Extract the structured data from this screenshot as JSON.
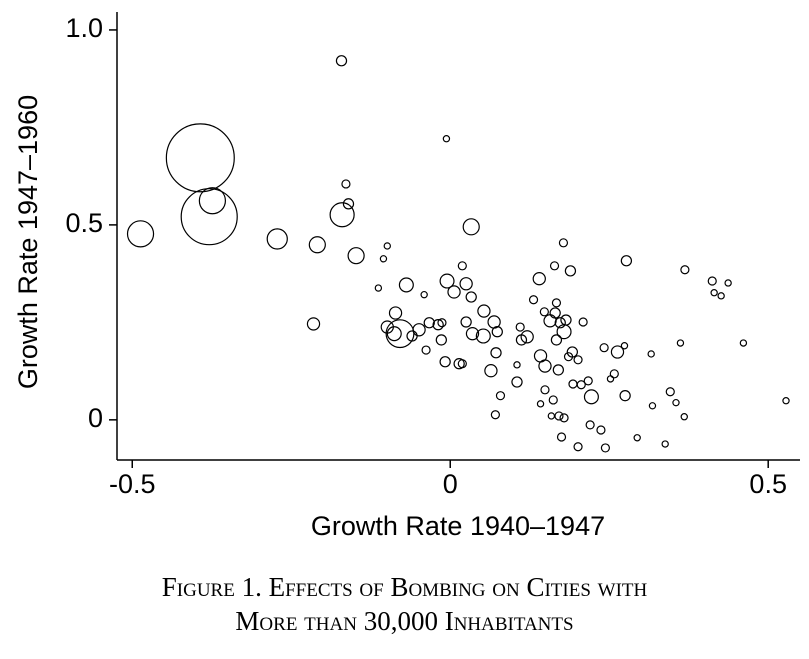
{
  "chart_data": {
    "type": "scatter",
    "x_label": "Growth Rate 1940–1947",
    "y_label": "Growth Rate 1947–1960",
    "caption": [
      "Figure 1. Effects of Bombing on Cities with",
      "More than 30,000 Inhabitants"
    ],
    "xlim": [
      -0.524,
      0.55
    ],
    "ylim": [
      -0.103,
      1.046
    ],
    "xticks": [
      -0.5,
      0,
      0.5
    ],
    "yticks": [
      0,
      0.5,
      {
        "value": 1,
        "label": "1.0"
      }
    ],
    "color": "#000000",
    "series": [
      {
        "x": [
          -0.393,
          -0.379,
          -0.374,
          -0.487,
          -0.272,
          -0.209,
          -0.17,
          -0.171,
          -0.164,
          -0.16,
          -0.148,
          -0.215,
          -0.099,
          -0.105,
          -0.113,
          -0.069,
          -0.041,
          -0.006,
          0.033,
          -0.005,
          0.019,
          0.006,
          0.025,
          0.033,
          -0.079,
          -0.086,
          -0.099,
          -0.088,
          -0.049,
          -0.06,
          -0.033,
          -0.019,
          -0.013,
          -0.014,
          -0.038,
          -0.008,
          0.014,
          0.019,
          0.025,
          0.035,
          0.052,
          0.053,
          0.069,
          0.074,
          0.064,
          0.072,
          0.079,
          0.071,
          0.105,
          0.11,
          0.112,
          0.121,
          0.105,
          0.131,
          0.14,
          0.142,
          0.148,
          0.157,
          0.164,
          0.167,
          0.178,
          0.189,
          0.165,
          0.173,
          0.179,
          0.182,
          0.167,
          0.149,
          0.17,
          0.186,
          0.192,
          0.201,
          0.209,
          0.149,
          0.142,
          0.162,
          0.159,
          0.171,
          0.179,
          0.175,
          0.201,
          0.193,
          0.206,
          0.217,
          0.222,
          0.22,
          0.237,
          0.244,
          0.242,
          0.263,
          0.274,
          0.277,
          0.258,
          0.275,
          0.252,
          0.294,
          0.316,
          0.318,
          0.338,
          0.346,
          0.355,
          0.362,
          0.369,
          0.368,
          0.412,
          0.415,
          0.426,
          0.437,
          0.461,
          0.528
        ],
        "values": [
          0.672,
          0.521,
          0.562,
          0.477,
          0.464,
          0.449,
          0.526,
          0.921,
          0.605,
          0.554,
          0.421,
          0.246,
          0.446,
          0.413,
          0.338,
          0.346,
          0.321,
          0.721,
          0.495,
          0.356,
          0.395,
          0.328,
          0.349,
          0.315,
          0.221,
          0.274,
          0.238,
          0.221,
          0.231,
          0.215,
          0.249,
          0.244,
          0.249,
          0.205,
          0.179,
          0.149,
          0.144,
          0.144,
          0.251,
          0.221,
          0.215,
          0.279,
          0.251,
          0.226,
          0.126,
          0.172,
          0.062,
          0.013,
          0.097,
          0.238,
          0.205,
          0.213,
          0.141,
          0.308,
          0.362,
          0.164,
          0.277,
          0.254,
          0.395,
          0.3,
          0.454,
          0.382,
          0.274,
          0.249,
          0.226,
          0.256,
          0.205,
          0.138,
          0.128,
          0.162,
          0.174,
          0.154,
          0.251,
          0.077,
          0.041,
          0.051,
          0.01,
          0.01,
          0.005,
          -0.044,
          -0.069,
          0.092,
          0.09,
          0.1,
          0.059,
          -0.013,
          -0.026,
          -0.072,
          0.185,
          0.174,
          0.19,
          0.408,
          0.118,
          0.062,
          0.105,
          -0.046,
          0.169,
          0.036,
          -0.062,
          0.072,
          0.044,
          0.197,
          0.385,
          0.008,
          0.356,
          0.326,
          0.318,
          0.351,
          0.197,
          0.049
        ],
        "sizes": [
          72,
          49,
          10.6,
          10.6,
          6.3,
          4,
          9,
          1.6,
          1,
          1.6,
          4,
          2.3,
          0.6,
          0.6,
          0.6,
          3,
          0.6,
          0.6,
          4,
          3,
          1,
          2.3,
          2.3,
          1.6,
          12,
          2.3,
          2.3,
          3,
          2.3,
          1.6,
          1.6,
          1.6,
          1,
          1.6,
          1,
          1.6,
          1.6,
          1,
          1.6,
          2.3,
          3,
          2.3,
          2.3,
          1.6,
          2.3,
          1.6,
          1,
          1,
          1.6,
          1,
          1.6,
          2.3,
          0.6,
          1,
          2.3,
          2.3,
          1,
          2.3,
          1,
          1,
          1,
          1.6,
          1.6,
          1.6,
          3,
          1.6,
          1.6,
          2.3,
          1.6,
          1,
          1.6,
          1,
          1,
          1,
          0.6,
          1,
          0.6,
          1,
          1,
          1,
          1,
          1,
          1,
          1,
          3,
          1,
          1,
          1,
          1,
          2.3,
          0.6,
          1.6,
          1,
          1.6,
          0.6,
          0.6,
          0.6,
          0.6,
          0.6,
          1,
          0.6,
          0.6,
          1,
          0.6,
          1,
          0.6,
          0.6,
          0.6,
          0.6,
          0.6
        ]
      }
    ]
  }
}
